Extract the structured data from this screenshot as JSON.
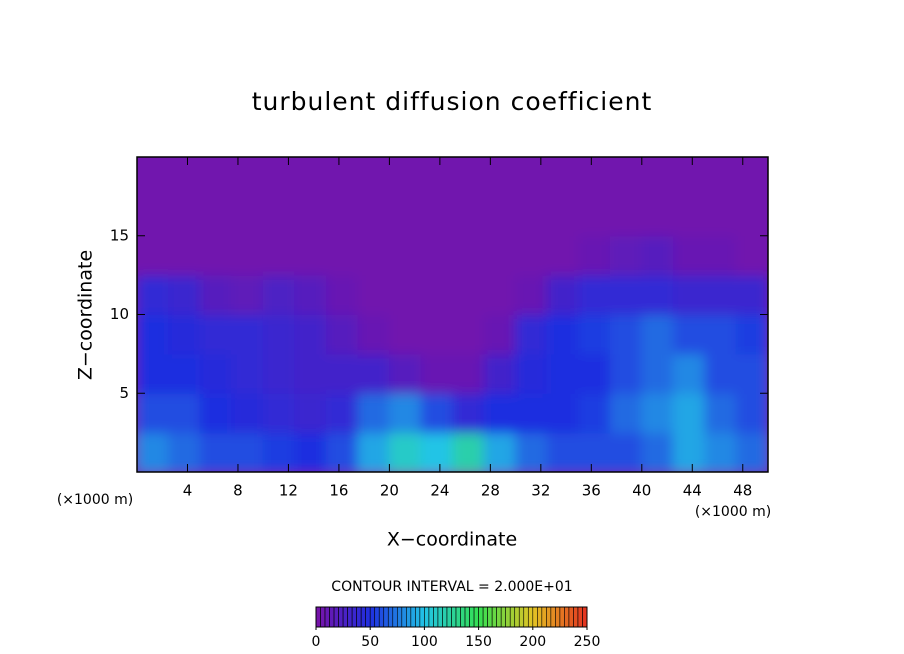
{
  "chart_data": {
    "type": "contour",
    "title": "turbulent diffusion coefficient",
    "x_label": "X−coordinate",
    "y_label": "Z−coordinate",
    "x_unit_label": "(×1000 m)",
    "y_unit_label": "(×1000 m)",
    "contour_interval_label": "CONTOUR INTERVAL = 2.000E+01",
    "xlim": [
      0,
      50
    ],
    "ylim": [
      0,
      20
    ],
    "xticks": [
      4,
      8,
      12,
      16,
      20,
      24,
      28,
      32,
      36,
      40,
      44,
      48
    ],
    "yticks": [
      5,
      10,
      15
    ],
    "colorbar_lim": [
      0,
      250
    ],
    "colorbar_ticks": [
      0,
      50,
      100,
      150,
      200,
      250
    ],
    "colormap": [
      "#7a12a8",
      "#1f2fe0",
      "#22c4e6",
      "#34e052",
      "#e4c424",
      "#e43020"
    ],
    "z": [
      [
        80,
        70,
        60,
        60,
        55,
        50,
        60,
        90,
        110,
        100,
        120,
        90,
        70,
        60,
        60,
        60,
        70,
        90,
        80,
        70
      ],
      [
        60,
        60,
        50,
        45,
        40,
        35,
        40,
        70,
        80,
        60,
        40,
        50,
        50,
        50,
        55,
        70,
        80,
        90,
        70,
        60
      ],
      [
        50,
        50,
        45,
        40,
        35,
        30,
        30,
        30,
        20,
        10,
        10,
        30,
        45,
        50,
        50,
        60,
        70,
        80,
        60,
        60
      ],
      [
        50,
        45,
        40,
        40,
        35,
        30,
        20,
        10,
        5,
        5,
        5,
        10,
        40,
        50,
        55,
        60,
        70,
        60,
        60,
        55
      ],
      [
        40,
        35,
        20,
        15,
        25,
        20,
        10,
        5,
        5,
        5,
        5,
        5,
        10,
        30,
        40,
        40,
        40,
        35,
        35,
        35
      ],
      [
        5,
        5,
        5,
        5,
        5,
        5,
        5,
        5,
        5,
        5,
        5,
        5,
        5,
        5,
        10,
        15,
        20,
        10,
        10,
        5
      ],
      [
        5,
        5,
        5,
        5,
        5,
        5,
        5,
        5,
        5,
        5,
        5,
        5,
        5,
        5,
        5,
        5,
        5,
        5,
        5,
        5
      ],
      [
        5,
        5,
        5,
        5,
        5,
        5,
        5,
        5,
        5,
        5,
        5,
        5,
        5,
        5,
        5,
        5,
        5,
        5,
        5,
        5
      ]
    ]
  }
}
